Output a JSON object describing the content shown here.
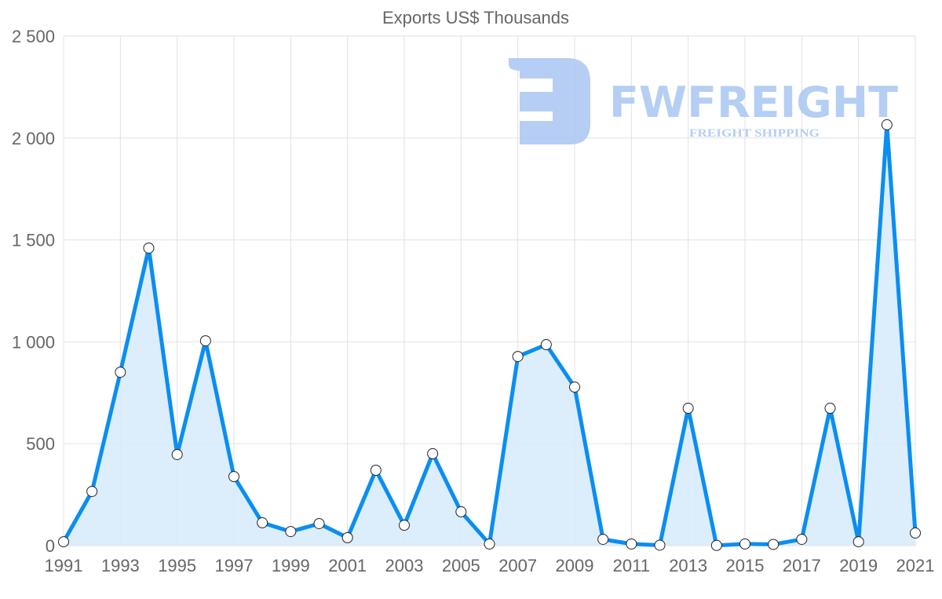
{
  "chart_data": {
    "type": "area",
    "title": "Exports US$ Thousands",
    "xlabel": "",
    "ylabel": "",
    "x": [
      1991,
      1992,
      1993,
      1994,
      1995,
      1996,
      1997,
      1998,
      1999,
      2000,
      2001,
      2002,
      2003,
      2004,
      2005,
      2006,
      2007,
      2008,
      2009,
      2010,
      2011,
      2012,
      2013,
      2014,
      2015,
      2016,
      2017,
      2018,
      2019,
      2020,
      2021
    ],
    "series": [
      {
        "name": "Exports US$ Thousands",
        "values": [
          19,
          266,
          851,
          1460,
          447,
          1005,
          339,
          112,
          69,
          108,
          39,
          370,
          100,
          451,
          166,
          8,
          928,
          986,
          778,
          31,
          8,
          2,
          674,
          1,
          8,
          6,
          31,
          674,
          19,
          2065,
          62
        ]
      }
    ],
    "ylim": [
      0,
      2500
    ],
    "yticks": [
      "0",
      "500",
      "1 000",
      "1 500",
      "2 000",
      "2 500"
    ],
    "xticks": [
      "1991",
      "1993",
      "1995",
      "1997",
      "1999",
      "2001",
      "2003",
      "2005",
      "2007",
      "2009",
      "2011",
      "2013",
      "2015",
      "2017",
      "2019",
      "2021"
    ],
    "grid": true,
    "legend": "none",
    "colors": {
      "line": "#0a8ef2",
      "fill": "#d8ebfc",
      "grid": "#e2e2e2",
      "logo": "#a9c6f2"
    }
  },
  "watermark": {
    "brand": "FWFREIGHT",
    "tagline": "FREIGHT SHIPPING"
  }
}
